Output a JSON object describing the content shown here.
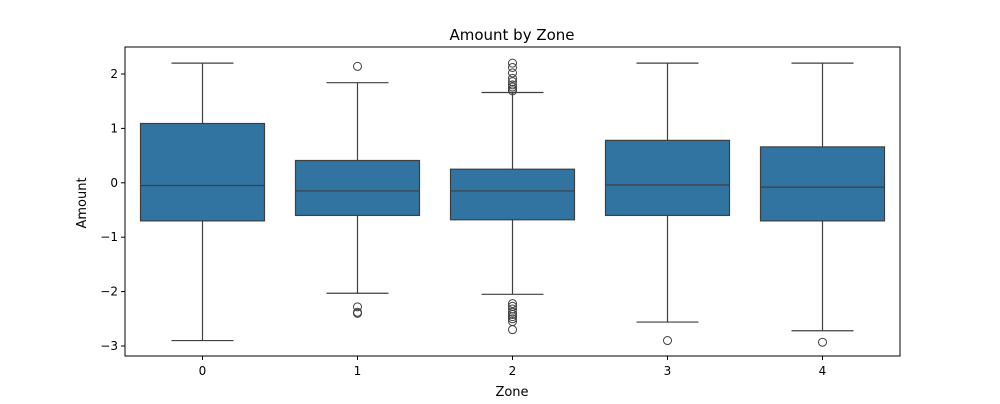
{
  "chart_data": {
    "type": "box",
    "title": "Amount by Zone",
    "xlabel": "Zone",
    "ylabel": "Amount",
    "categories": [
      "0",
      "1",
      "2",
      "3",
      "4"
    ],
    "ylim": [
      -3.2,
      2.5
    ],
    "yticks": [
      {
        "value": 2,
        "label": "2"
      },
      {
        "value": 1,
        "label": "1"
      },
      {
        "value": 0,
        "label": "0"
      },
      {
        "value": -1,
        "label": "−1"
      },
      {
        "value": -2,
        "label": "−2"
      },
      {
        "value": -3,
        "label": "−3"
      }
    ],
    "grid": false,
    "box_color": "#3274a1",
    "line_color": "#3f3f3f",
    "boxes": [
      {
        "category": "0",
        "whisker_low": -2.9,
        "q1": -0.7,
        "median": -0.05,
        "q3": 1.09,
        "whisker_high": 2.2,
        "outliers": []
      },
      {
        "category": "1",
        "whisker_low": -2.03,
        "q1": -0.6,
        "median": -0.15,
        "q3": 0.41,
        "whisker_high": 1.84,
        "outliers": [
          2.14,
          -2.28,
          -2.38,
          -2.4
        ]
      },
      {
        "category": "2",
        "whisker_low": -2.05,
        "q1": -0.68,
        "median": -0.15,
        "q3": 0.25,
        "whisker_high": 1.66,
        "outliers": [
          2.2,
          2.12,
          2.02,
          1.92,
          1.86,
          1.8,
          1.76,
          1.72,
          1.69,
          -2.22,
          -2.27,
          -2.32,
          -2.38,
          -2.42,
          -2.46,
          -2.5,
          -2.55,
          -2.7
        ]
      },
      {
        "category": "3",
        "whisker_low": -2.56,
        "q1": -0.6,
        "median": -0.04,
        "q3": 0.78,
        "whisker_high": 2.2,
        "outliers": [
          -2.9
        ]
      },
      {
        "category": "4",
        "whisker_low": -2.72,
        "q1": -0.7,
        "median": -0.08,
        "q3": 0.66,
        "whisker_high": 2.2,
        "outliers": [
          -2.93
        ]
      }
    ]
  }
}
